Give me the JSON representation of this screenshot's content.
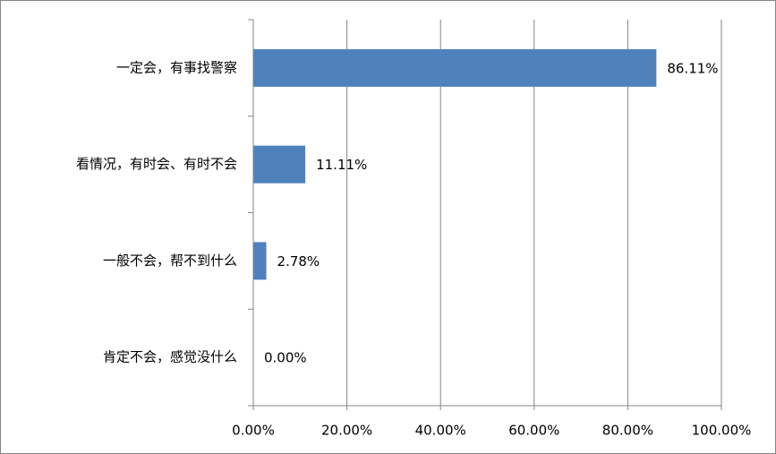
{
  "chart_data": {
    "type": "hbar",
    "categories": [
      "一定会，有事找警察",
      "看情况，有时会、有时不会",
      "一般不会，帮不到什么",
      "肯定不会，感觉没什么"
    ],
    "values": [
      86.11,
      11.11,
      2.78,
      0
    ],
    "value_labels": [
      "86.11%",
      "11.11%",
      "2.78%",
      "0.00%"
    ],
    "color": "#4f81bd",
    "xlim": [
      0,
      100
    ],
    "xticks": [
      {
        "value": 0,
        "label": "0.00%"
      },
      {
        "value": 20,
        "label": "20.00%"
      },
      {
        "value": 40,
        "label": "40.00%"
      },
      {
        "value": 60,
        "label": "60.00%"
      },
      {
        "value": 80,
        "label": "80.00%"
      },
      {
        "value": 100,
        "label": "100.00%"
      }
    ],
    "grid": true
  }
}
